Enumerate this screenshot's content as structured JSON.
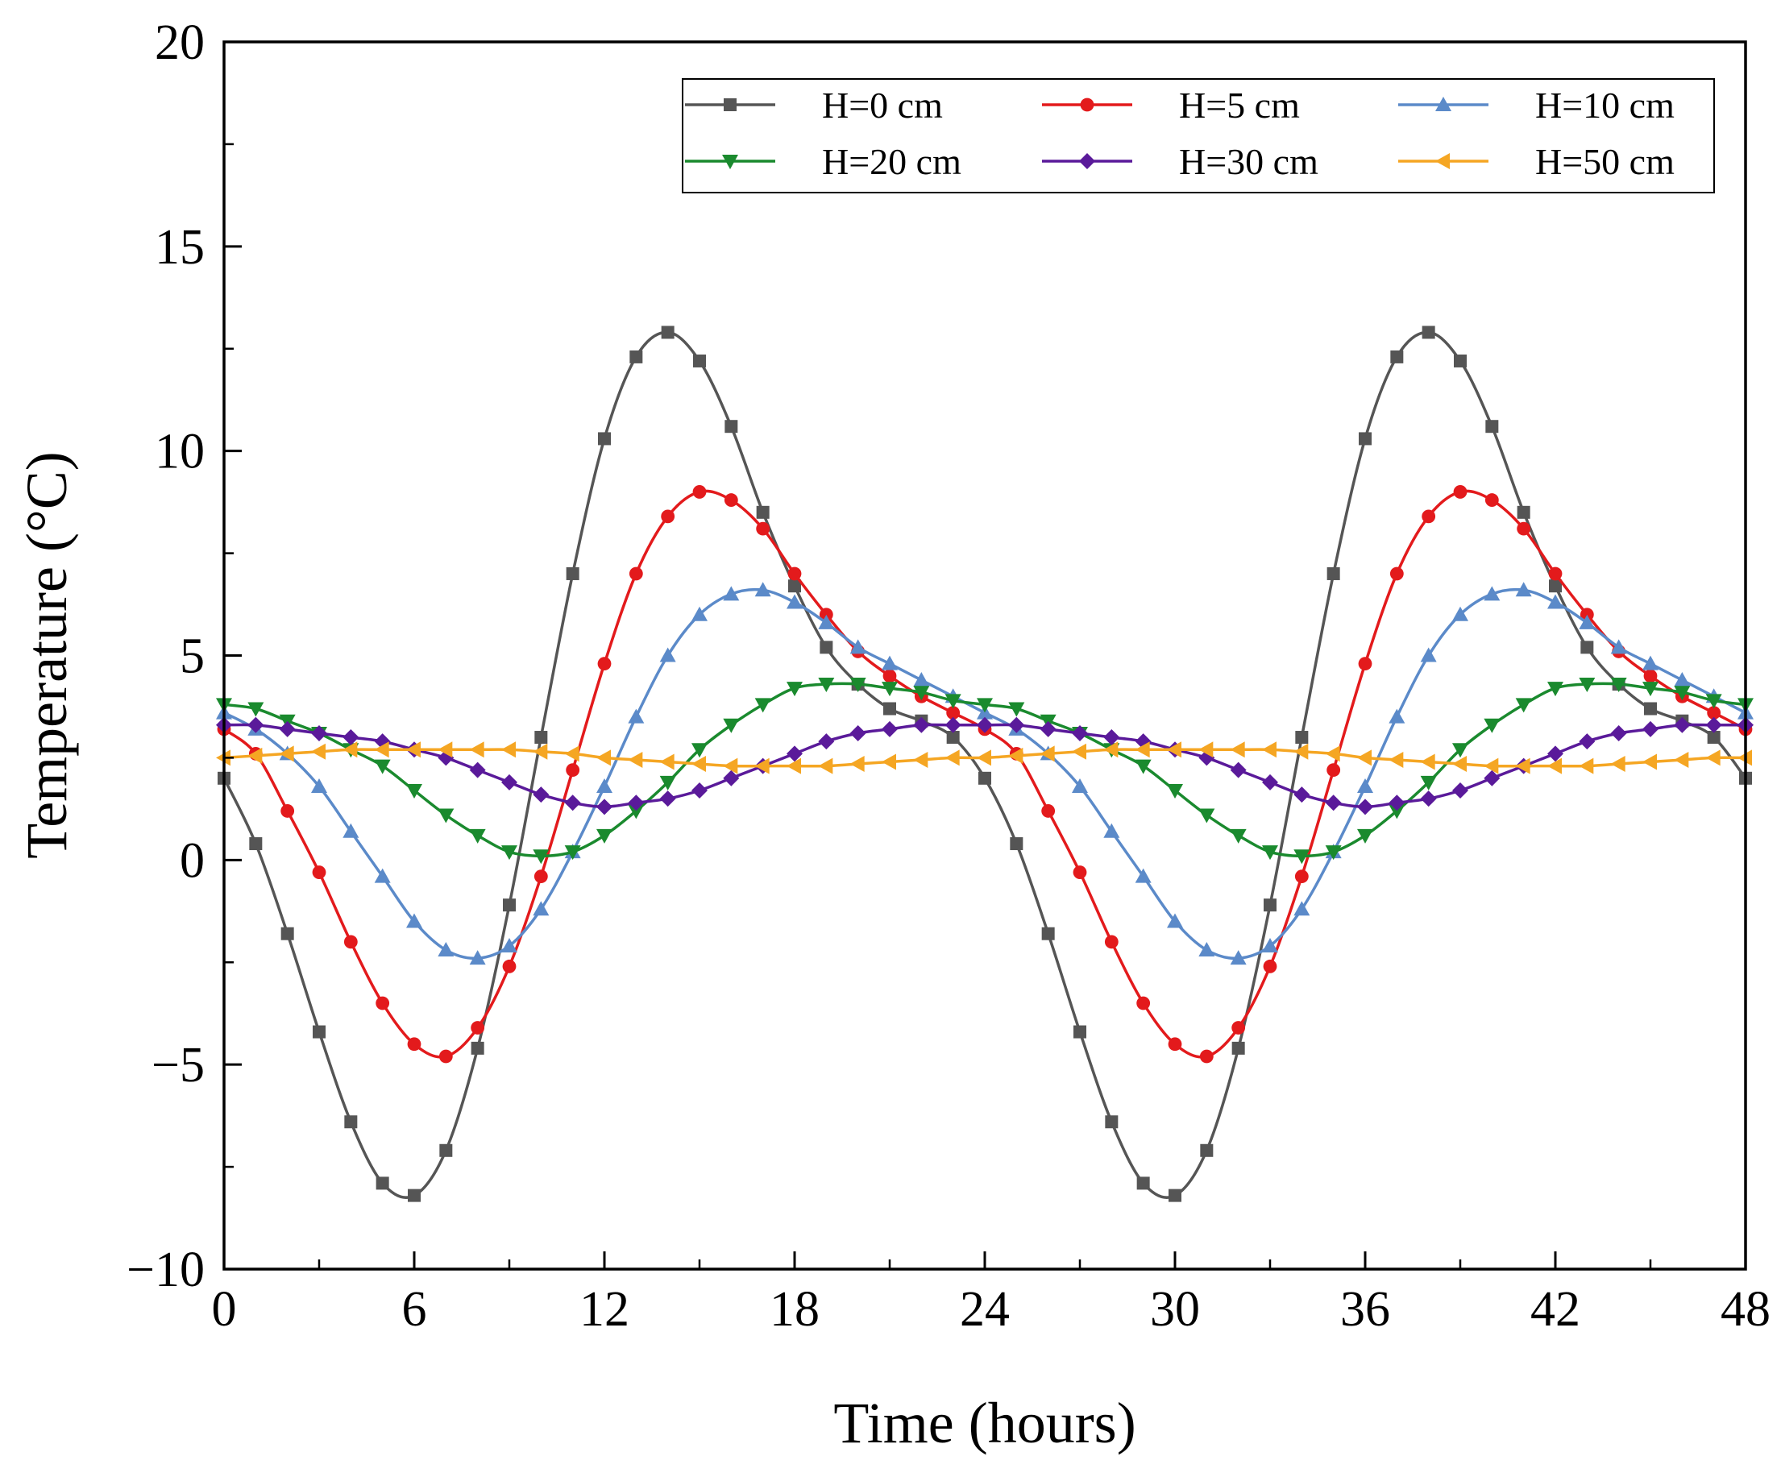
{
  "chart_data": {
    "type": "line",
    "title": "",
    "xlabel": "Time (hours)",
    "ylabel": "Temperature (°C)",
    "xlim": [
      0,
      48
    ],
    "ylim": [
      -10,
      20
    ],
    "xticks": [
      0,
      6,
      12,
      18,
      24,
      30,
      36,
      42,
      48
    ],
    "yticks": [
      -10,
      -5,
      0,
      5,
      10,
      15,
      20
    ],
    "xtick_labels": [
      "0",
      "6",
      "12",
      "18",
      "24",
      "30",
      "36",
      "42",
      "48"
    ],
    "ytick_labels": [
      "−10",
      "−5",
      "0",
      "5",
      "10",
      "15",
      "20"
    ],
    "grid": false,
    "legend_position": "top-right",
    "x": [
      0,
      1,
      2,
      3,
      4,
      5,
      6,
      7,
      8,
      9,
      10,
      11,
      12,
      13,
      14,
      15,
      16,
      17,
      18,
      19,
      20,
      21,
      22,
      23,
      24,
      25,
      26,
      27,
      28,
      29,
      30,
      31,
      32,
      33,
      34,
      35,
      36,
      37,
      38,
      39,
      40,
      41,
      42,
      43,
      44,
      45,
      46,
      47,
      48
    ],
    "series": [
      {
        "name": "H=0 cm",
        "color": "#555555",
        "marker": "square",
        "values": [
          2.0,
          0.4,
          -1.8,
          -4.2,
          -6.4,
          -7.9,
          -8.2,
          -7.1,
          -4.6,
          -1.1,
          3.0,
          7.0,
          10.3,
          12.3,
          12.9,
          12.2,
          10.6,
          8.5,
          6.7,
          5.2,
          4.3,
          3.7,
          3.4,
          3.0,
          2.0,
          0.4,
          -1.8,
          -4.2,
          -6.4,
          -7.9,
          -8.2,
          -7.1,
          -4.6,
          -1.1,
          3.0,
          7.0,
          10.3,
          12.3,
          12.9,
          12.2,
          10.6,
          8.5,
          6.7,
          5.2,
          4.3,
          3.7,
          3.4,
          3.0,
          2.0
        ]
      },
      {
        "name": "H=5 cm",
        "color": "#e31a1c",
        "marker": "circle",
        "values": [
          3.2,
          2.6,
          1.2,
          -0.3,
          -2.0,
          -3.5,
          -4.5,
          -4.8,
          -4.1,
          -2.6,
          -0.4,
          2.2,
          4.8,
          7.0,
          8.4,
          9.0,
          8.8,
          8.1,
          7.0,
          6.0,
          5.1,
          4.5,
          4.0,
          3.6,
          3.2,
          2.6,
          1.2,
          -0.3,
          -2.0,
          -3.5,
          -4.5,
          -4.8,
          -4.1,
          -2.6,
          -0.4,
          2.2,
          4.8,
          7.0,
          8.4,
          9.0,
          8.8,
          8.1,
          7.0,
          6.0,
          5.1,
          4.5,
          4.0,
          3.6,
          3.2
        ]
      },
      {
        "name": "H=10 cm",
        "color": "#5b8ac9",
        "marker": "triangle-up",
        "values": [
          3.6,
          3.2,
          2.6,
          1.8,
          0.7,
          -0.4,
          -1.5,
          -2.2,
          -2.4,
          -2.1,
          -1.2,
          0.2,
          1.8,
          3.5,
          5.0,
          6.0,
          6.5,
          6.6,
          6.3,
          5.8,
          5.2,
          4.8,
          4.4,
          4.0,
          3.6,
          3.2,
          2.6,
          1.8,
          0.7,
          -0.4,
          -1.5,
          -2.2,
          -2.4,
          -2.1,
          -1.2,
          0.2,
          1.8,
          3.5,
          5.0,
          6.0,
          6.5,
          6.6,
          6.3,
          5.8,
          5.2,
          4.8,
          4.4,
          4.0,
          3.6
        ]
      },
      {
        "name": "H=20 cm",
        "color": "#1a8a2e",
        "marker": "triangle-down",
        "values": [
          3.8,
          3.7,
          3.4,
          3.1,
          2.7,
          2.3,
          1.7,
          1.1,
          0.6,
          0.2,
          0.1,
          0.2,
          0.6,
          1.2,
          1.9,
          2.7,
          3.3,
          3.8,
          4.2,
          4.3,
          4.3,
          4.2,
          4.1,
          3.9,
          3.8,
          3.7,
          3.4,
          3.1,
          2.7,
          2.3,
          1.7,
          1.1,
          0.6,
          0.2,
          0.1,
          0.2,
          0.6,
          1.2,
          1.9,
          2.7,
          3.3,
          3.8,
          4.2,
          4.3,
          4.3,
          4.2,
          4.1,
          3.9,
          3.8
        ]
      },
      {
        "name": "H=30 cm",
        "color": "#5a1a9a",
        "marker": "diamond",
        "values": [
          3.3,
          3.3,
          3.2,
          3.1,
          3.0,
          2.9,
          2.7,
          2.5,
          2.2,
          1.9,
          1.6,
          1.4,
          1.3,
          1.4,
          1.5,
          1.7,
          2.0,
          2.3,
          2.6,
          2.9,
          3.1,
          3.2,
          3.3,
          3.3,
          3.3,
          3.3,
          3.2,
          3.1,
          3.0,
          2.9,
          2.7,
          2.5,
          2.2,
          1.9,
          1.6,
          1.4,
          1.3,
          1.4,
          1.5,
          1.7,
          2.0,
          2.3,
          2.6,
          2.9,
          3.1,
          3.2,
          3.3,
          3.3,
          3.3
        ]
      },
      {
        "name": "H=50 cm",
        "color": "#f5a623",
        "marker": "triangle-left",
        "values": [
          2.5,
          2.55,
          2.6,
          2.65,
          2.7,
          2.7,
          2.7,
          2.7,
          2.7,
          2.7,
          2.65,
          2.6,
          2.5,
          2.45,
          2.4,
          2.35,
          2.3,
          2.3,
          2.3,
          2.3,
          2.35,
          2.4,
          2.45,
          2.5,
          2.5,
          2.55,
          2.6,
          2.65,
          2.7,
          2.7,
          2.7,
          2.7,
          2.7,
          2.7,
          2.65,
          2.6,
          2.5,
          2.45,
          2.4,
          2.35,
          2.3,
          2.3,
          2.3,
          2.3,
          2.35,
          2.4,
          2.45,
          2.5,
          2.5
        ]
      }
    ]
  }
}
